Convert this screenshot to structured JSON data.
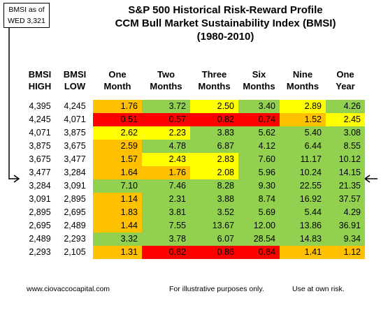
{
  "callout": {
    "line1": "BMSI as of",
    "line2": "WED 3,321"
  },
  "titles": [
    "S&P 500 Historical Risk-Reward Profile",
    "CCM Bull Market Sustainability Index (BMSI)",
    "(1980-2010)"
  ],
  "colors": {
    "red": "#ff0000",
    "orange": "#ffc000",
    "yellow": "#ffff00",
    "green": "#92d050"
  },
  "chart_data": {
    "type": "table",
    "headers": [
      [
        "BMSI",
        "HIGH"
      ],
      [
        "BMSI",
        "LOW"
      ],
      [
        "One",
        "Month"
      ],
      [
        "Two",
        "Months"
      ],
      [
        "Three",
        "Months"
      ],
      [
        "Six",
        "Months"
      ],
      [
        "Nine",
        "Months"
      ],
      [
        "One",
        "Year"
      ]
    ],
    "rows": [
      {
        "high": "4,395",
        "low": "4,245",
        "values": [
          "1.76",
          "3.72",
          "2.50",
          "3.40",
          "2.89",
          "4.26"
        ],
        "colors": [
          "orange",
          "green",
          "yellow",
          "green",
          "yellow",
          "green"
        ]
      },
      {
        "high": "4,245",
        "low": "4,071",
        "values": [
          "0.51",
          "0.57",
          "0.82",
          "0.74",
          "1.52",
          "2.45"
        ],
        "colors": [
          "red",
          "red",
          "red",
          "red",
          "orange",
          "yellow"
        ]
      },
      {
        "high": "4,071",
        "low": "3,875",
        "values": [
          "2.62",
          "2.23",
          "3.83",
          "5.62",
          "5.40",
          "3.08"
        ],
        "colors": [
          "yellow",
          "yellow",
          "green",
          "green",
          "green",
          "green"
        ]
      },
      {
        "high": "3,875",
        "low": "3,675",
        "values": [
          "2.59",
          "4.78",
          "6.87",
          "4.12",
          "6.44",
          "8.55"
        ],
        "colors": [
          "orange",
          "green",
          "green",
          "green",
          "green",
          "green"
        ]
      },
      {
        "high": "3,675",
        "low": "3,477",
        "values": [
          "1.57",
          "2.43",
          "2.83",
          "7.60",
          "11.17",
          "10.12"
        ],
        "colors": [
          "orange",
          "yellow",
          "yellow",
          "green",
          "green",
          "green"
        ]
      },
      {
        "high": "3,477",
        "low": "3,284",
        "values": [
          "1.64",
          "1.76",
          "2.08",
          "5.96",
          "10.24",
          "14.15"
        ],
        "colors": [
          "orange",
          "orange",
          "yellow",
          "green",
          "green",
          "green"
        ]
      },
      {
        "high": "3,284",
        "low": "3,091",
        "values": [
          "7.10",
          "7.46",
          "8.28",
          "9.30",
          "22.55",
          "21.35"
        ],
        "colors": [
          "green",
          "green",
          "green",
          "green",
          "green",
          "green"
        ]
      },
      {
        "high": "3,091",
        "low": "2,895",
        "values": [
          "1.14",
          "2.31",
          "3.88",
          "8.74",
          "16.92",
          "37.57"
        ],
        "colors": [
          "orange",
          "green",
          "green",
          "green",
          "green",
          "green"
        ]
      },
      {
        "high": "2,895",
        "low": "2,695",
        "values": [
          "1.83",
          "3.81",
          "3.52",
          "5.69",
          "5.44",
          "4.29"
        ],
        "colors": [
          "orange",
          "green",
          "green",
          "green",
          "green",
          "green"
        ]
      },
      {
        "high": "2,695",
        "low": "2,489",
        "values": [
          "1.44",
          "7.55",
          "13.67",
          "12.00",
          "13.86",
          "36.91"
        ],
        "colors": [
          "orange",
          "green",
          "green",
          "green",
          "green",
          "green"
        ]
      },
      {
        "high": "2,489",
        "low": "2,293",
        "values": [
          "3.32",
          "3.78",
          "6.07",
          "28.54",
          "14.83",
          "9.34"
        ],
        "colors": [
          "green",
          "green",
          "green",
          "green",
          "green",
          "green"
        ]
      },
      {
        "high": "2,293",
        "low": "2,105",
        "values": [
          "1.31",
          "0.82",
          "0.86",
          "0.84",
          "1.41",
          "1.12"
        ],
        "colors": [
          "orange",
          "red",
          "red",
          "red",
          "orange",
          "orange"
        ]
      }
    ],
    "current_row_index": 5
  },
  "footer": {
    "left": "www.ciovaccocapital.com",
    "center": "For illustrative purposes only.",
    "right": "Use at own risk."
  }
}
